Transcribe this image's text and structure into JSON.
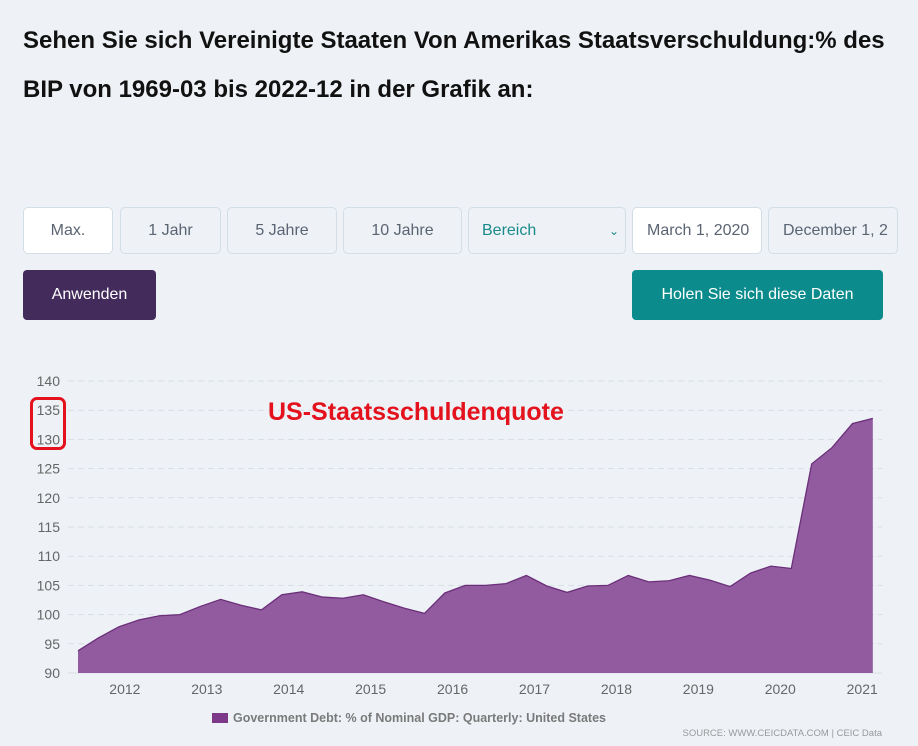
{
  "page_title": "Sehen Sie sich Vereinigte Staaten Von Amerikas Staatsverschuldung:% des BIP von 1969-03 bis 2022-12 in der Grafik an:",
  "controls": {
    "range_buttons": [
      "Max.",
      "1 Jahr",
      "5 Jahre",
      "10 Jahre"
    ],
    "range_select": "Bereich",
    "start_date": "March 1, 2020",
    "end_date": "December 1, 2",
    "apply_label": "Anwenden",
    "get_data_label": "Holen Sie sich diese Daten"
  },
  "colors": {
    "fill": "#925ba0",
    "line": "#6a2f78",
    "annotation": "#e3121c",
    "apply": "#432c5c",
    "get_data": "#0b8b8c"
  },
  "chart_data": {
    "type": "area",
    "annotation": "US-Staatsschuldenquote",
    "x": [
      "2011-Q2",
      "2011-Q3",
      "2011-Q4",
      "2012-Q1",
      "2012-Q2",
      "2012-Q3",
      "2012-Q4",
      "2013-Q1",
      "2013-Q2",
      "2013-Q3",
      "2013-Q4",
      "2014-Q1",
      "2014-Q2",
      "2014-Q3",
      "2014-Q4",
      "2015-Q1",
      "2015-Q2",
      "2015-Q3",
      "2015-Q4",
      "2016-Q1",
      "2016-Q2",
      "2016-Q3",
      "2016-Q4",
      "2017-Q1",
      "2017-Q2",
      "2017-Q3",
      "2017-Q4",
      "2018-Q1",
      "2018-Q2",
      "2018-Q3",
      "2018-Q4",
      "2019-Q1",
      "2019-Q2",
      "2019-Q3",
      "2019-Q4",
      "2020-Q1",
      "2020-Q2",
      "2020-Q3",
      "2020-Q4",
      "2021-Q1"
    ],
    "series": [
      {
        "name": "Government Debt: % of Nominal GDP: Quarterly: United States",
        "values": [
          93.8,
          96.0,
          97.9,
          99.1,
          99.8,
          100.0,
          101.4,
          102.6,
          101.6,
          100.8,
          103.4,
          103.9,
          103.0,
          102.8,
          103.4,
          102.2,
          101.1,
          100.2,
          103.7,
          105.0,
          105.0,
          105.3,
          106.7,
          104.9,
          103.8,
          104.9,
          105.0,
          106.7,
          105.6,
          105.8,
          106.7,
          105.9,
          104.8,
          107.1,
          108.3,
          107.9,
          125.8,
          128.6,
          132.7,
          133.6
        ]
      }
    ],
    "x_tick_labels": [
      "2012",
      "2013",
      "2014",
      "2015",
      "2016",
      "2017",
      "2018",
      "2019",
      "2020",
      "2021"
    ],
    "y_tick_labels": [
      "90",
      "95",
      "100",
      "105",
      "110",
      "115",
      "120",
      "125",
      "130",
      "135",
      "140"
    ],
    "ylim": [
      90,
      140
    ],
    "grid": "horizontal dashed",
    "legend": "bottom",
    "highlighted_ticks": [
      "135",
      "130"
    ],
    "source": "SOURCE: WWW.CEICDATA.COM | CEIC Data"
  }
}
